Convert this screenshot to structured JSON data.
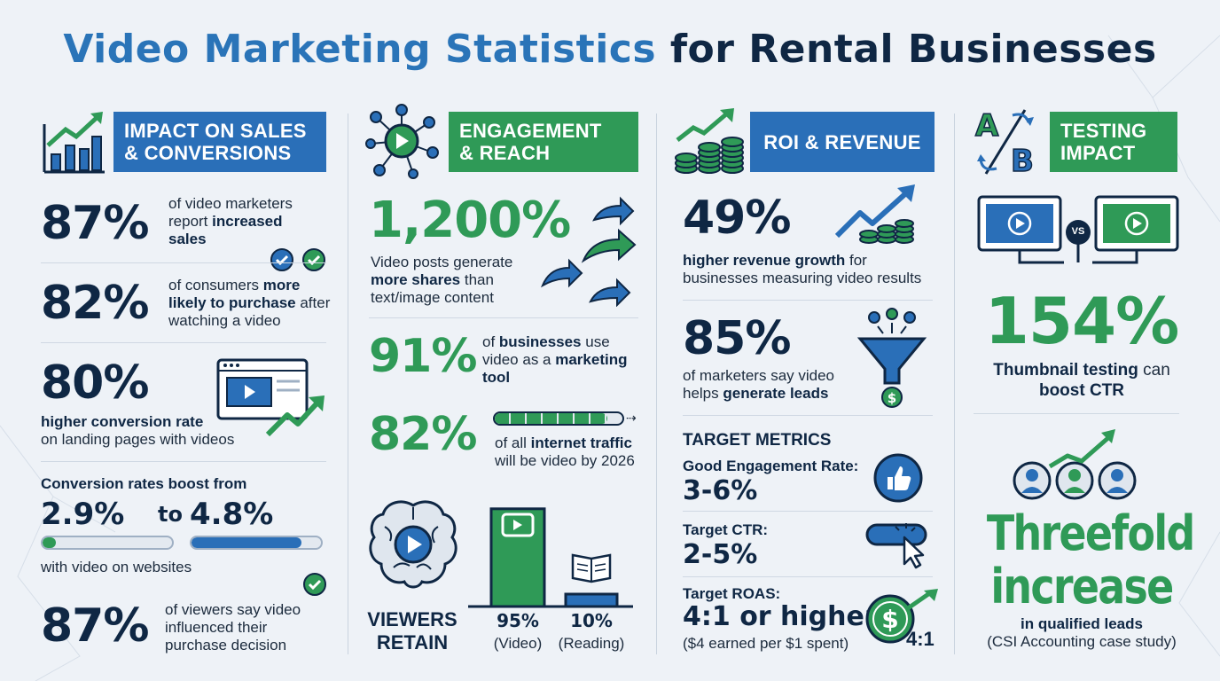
{
  "title": {
    "part1": "Video Marketing Statistics",
    "part2": "for Rental Businesses"
  },
  "colors": {
    "blue": "#2a6fb8",
    "green": "#2f9a57",
    "navy": "#0f2744",
    "background": "#eef2f7"
  },
  "sales": {
    "header": [
      "IMPACT ON SALES",
      "& CONVERSIONS"
    ],
    "icon": "growth-chart-icon",
    "s1": {
      "value": "87%",
      "t1": "of video marketers",
      "t2": "report ",
      "t2b": "increased",
      "t3b": "sales"
    },
    "s2": {
      "value": "82%",
      "t1": "of consumers ",
      "t1b": "more",
      "t2b": "likely to purchase",
      "t2": " after",
      "t3": "watching a video"
    },
    "s3": {
      "value": "80%",
      "t1b": "higher conversion rate",
      "t2": "on landing pages with videos"
    },
    "s4": {
      "heading": "Conversion rates boost from",
      "from": "2.9%",
      "to_word": "to",
      "to": "4.8%",
      "from_progress": 0.1,
      "to_progress": 0.85,
      "caption": "with video on websites"
    },
    "s5": {
      "value": "87%",
      "t1": "of viewers say video",
      "t2": "influenced their",
      "t3": "purchase decision"
    }
  },
  "engagement": {
    "header": [
      "ENGAGEMENT",
      "& REACH"
    ],
    "icon": "network-play-icon",
    "s1": {
      "value": "1,200%",
      "t1": "Video posts generate",
      "t2b": "more shares",
      "t2": " than",
      "t3": "text/image content"
    },
    "s2": {
      "value": "91%",
      "t1": "of ",
      "t1b": "businesses",
      "t1c": " use",
      "t2": "video as a ",
      "t2b": "marketing",
      "t3b": "tool"
    },
    "s3": {
      "value": "82%",
      "progress": 0.88,
      "t1": "of all ",
      "t1b": "internet traffic",
      "t2": "will be video by 2026"
    },
    "retain": {
      "label1": "VIEWERS",
      "label2": "RETAIN",
      "video_pct": "95%",
      "video_label": "(Video)",
      "read_pct": "10%",
      "read_label": "(Reading)",
      "video_value": 95,
      "read_value": 10
    }
  },
  "roi": {
    "header": "ROI & REVENUE",
    "icon": "coins-growth-icon",
    "s1": {
      "value": "49%",
      "t1b": "higher revenue growth",
      "t1": " for",
      "t2": "businesses measuring video results"
    },
    "s2": {
      "value": "85%",
      "t1": "of marketers say video",
      "t2": "helps ",
      "t2b": "generate leads"
    },
    "metrics_title": "TARGET METRICS",
    "m1": {
      "label": "Good Engagement Rate:",
      "value": "3-6%"
    },
    "m2": {
      "label": "Target CTR:",
      "value": "2-5%"
    },
    "m3": {
      "label": "Target ROAS:",
      "value": "4:1 or higher",
      "note": "($4 earned per $1 spent)",
      "badge": "4:1"
    }
  },
  "testing": {
    "header": [
      "TESTING",
      "IMPACT"
    ],
    "icon": "ab-test-icon",
    "letters": {
      "a": "A",
      "b": "B"
    },
    "vs": "VS",
    "s1": {
      "value": "154%",
      "t1b": "Thumbnail testing",
      "t1": " can",
      "t2b": "boost CTR"
    },
    "s2": {
      "line1": "Threefold",
      "line2": "increase",
      "t1b": "in qualified leads",
      "t2": "(CSI Accounting case study)"
    }
  }
}
